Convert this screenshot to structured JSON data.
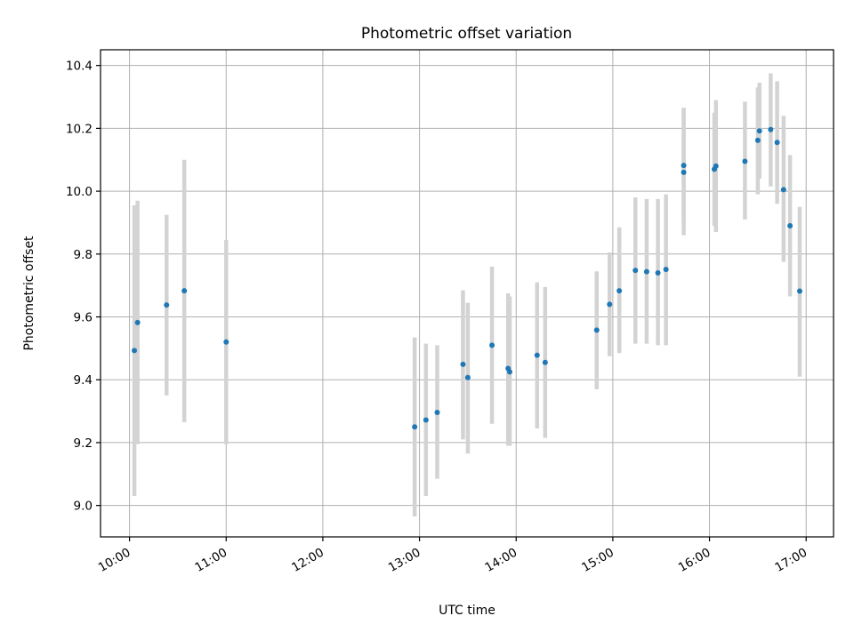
{
  "chart_data": {
    "type": "scatter",
    "title": "Photometric offset variation",
    "xlabel": "UTC time",
    "ylabel": "Photometric offset",
    "x_ticks": [
      "10:00",
      "11:00",
      "12:00",
      "13:00",
      "14:00",
      "15:00",
      "16:00",
      "17:00"
    ],
    "y_ticks": [
      "9.0",
      "9.2",
      "9.4",
      "9.6",
      "9.8",
      "10.0",
      "10.2",
      "10.4"
    ],
    "xlim": [
      "09:42",
      "17:17"
    ],
    "ylim": [
      8.9,
      10.45
    ],
    "grid": true,
    "point_color": "#1f77b4",
    "errorbar_color": "#d3d3d3",
    "points": [
      {
        "t": "10:03",
        "y": 9.493,
        "lo": 9.03,
        "hi": 9.955
      },
      {
        "t": "10:05",
        "y": 9.582,
        "lo": 9.195,
        "hi": 9.97
      },
      {
        "t": "10:23",
        "y": 9.638,
        "lo": 9.35,
        "hi": 9.925
      },
      {
        "t": "10:34",
        "y": 9.683,
        "lo": 9.265,
        "hi": 10.1
      },
      {
        "t": "11:00",
        "y": 9.52,
        "lo": 9.195,
        "hi": 9.845
      },
      {
        "t": "12:57",
        "y": 9.25,
        "lo": 8.965,
        "hi": 9.535
      },
      {
        "t": "13:04",
        "y": 9.272,
        "lo": 9.03,
        "hi": 9.515
      },
      {
        "t": "13:11",
        "y": 9.296,
        "lo": 9.085,
        "hi": 9.51
      },
      {
        "t": "13:27",
        "y": 9.449,
        "lo": 9.21,
        "hi": 9.685
      },
      {
        "t": "13:30",
        "y": 9.407,
        "lo": 9.165,
        "hi": 9.645
      },
      {
        "t": "13:45",
        "y": 9.51,
        "lo": 9.26,
        "hi": 9.76
      },
      {
        "t": "13:55",
        "y": 9.436,
        "lo": 9.19,
        "hi": 9.675
      },
      {
        "t": "13:56",
        "y": 9.425,
        "lo": 9.19,
        "hi": 9.665
      },
      {
        "t": "14:13",
        "y": 9.478,
        "lo": 9.245,
        "hi": 9.71
      },
      {
        "t": "14:18",
        "y": 9.455,
        "lo": 9.215,
        "hi": 9.695
      },
      {
        "t": "14:50",
        "y": 9.558,
        "lo": 9.37,
        "hi": 9.745
      },
      {
        "t": "14:58",
        "y": 9.64,
        "lo": 9.475,
        "hi": 9.805
      },
      {
        "t": "15:04",
        "y": 9.683,
        "lo": 9.485,
        "hi": 9.885
      },
      {
        "t": "15:14",
        "y": 9.748,
        "lo": 9.515,
        "hi": 9.98
      },
      {
        "t": "15:21",
        "y": 9.744,
        "lo": 9.515,
        "hi": 9.975
      },
      {
        "t": "15:28",
        "y": 9.74,
        "lo": 9.51,
        "hi": 9.975
      },
      {
        "t": "15:33",
        "y": 9.751,
        "lo": 9.51,
        "hi": 9.99
      },
      {
        "t": "15:44",
        "y": 10.06,
        "lo": 9.86,
        "hi": 10.265
      },
      {
        "t": "15:44",
        "y": 10.082,
        "lo": 9.9,
        "hi": 10.265
      },
      {
        "t": "16:03",
        "y": 10.07,
        "lo": 9.89,
        "hi": 10.25
      },
      {
        "t": "16:04",
        "y": 10.08,
        "lo": 9.87,
        "hi": 10.29
      },
      {
        "t": "16:22",
        "y": 10.095,
        "lo": 9.91,
        "hi": 10.285
      },
      {
        "t": "16:30",
        "y": 10.162,
        "lo": 9.99,
        "hi": 10.33
      },
      {
        "t": "16:31",
        "y": 10.192,
        "lo": 10.04,
        "hi": 10.345
      },
      {
        "t": "16:38",
        "y": 10.196,
        "lo": 10.015,
        "hi": 10.375
      },
      {
        "t": "16:42",
        "y": 10.155,
        "lo": 9.96,
        "hi": 10.35
      },
      {
        "t": "16:46",
        "y": 10.005,
        "lo": 9.775,
        "hi": 10.24
      },
      {
        "t": "16:50",
        "y": 9.89,
        "lo": 9.665,
        "hi": 10.115
      },
      {
        "t": "16:56",
        "y": 9.682,
        "lo": 9.41,
        "hi": 9.95
      }
    ]
  }
}
